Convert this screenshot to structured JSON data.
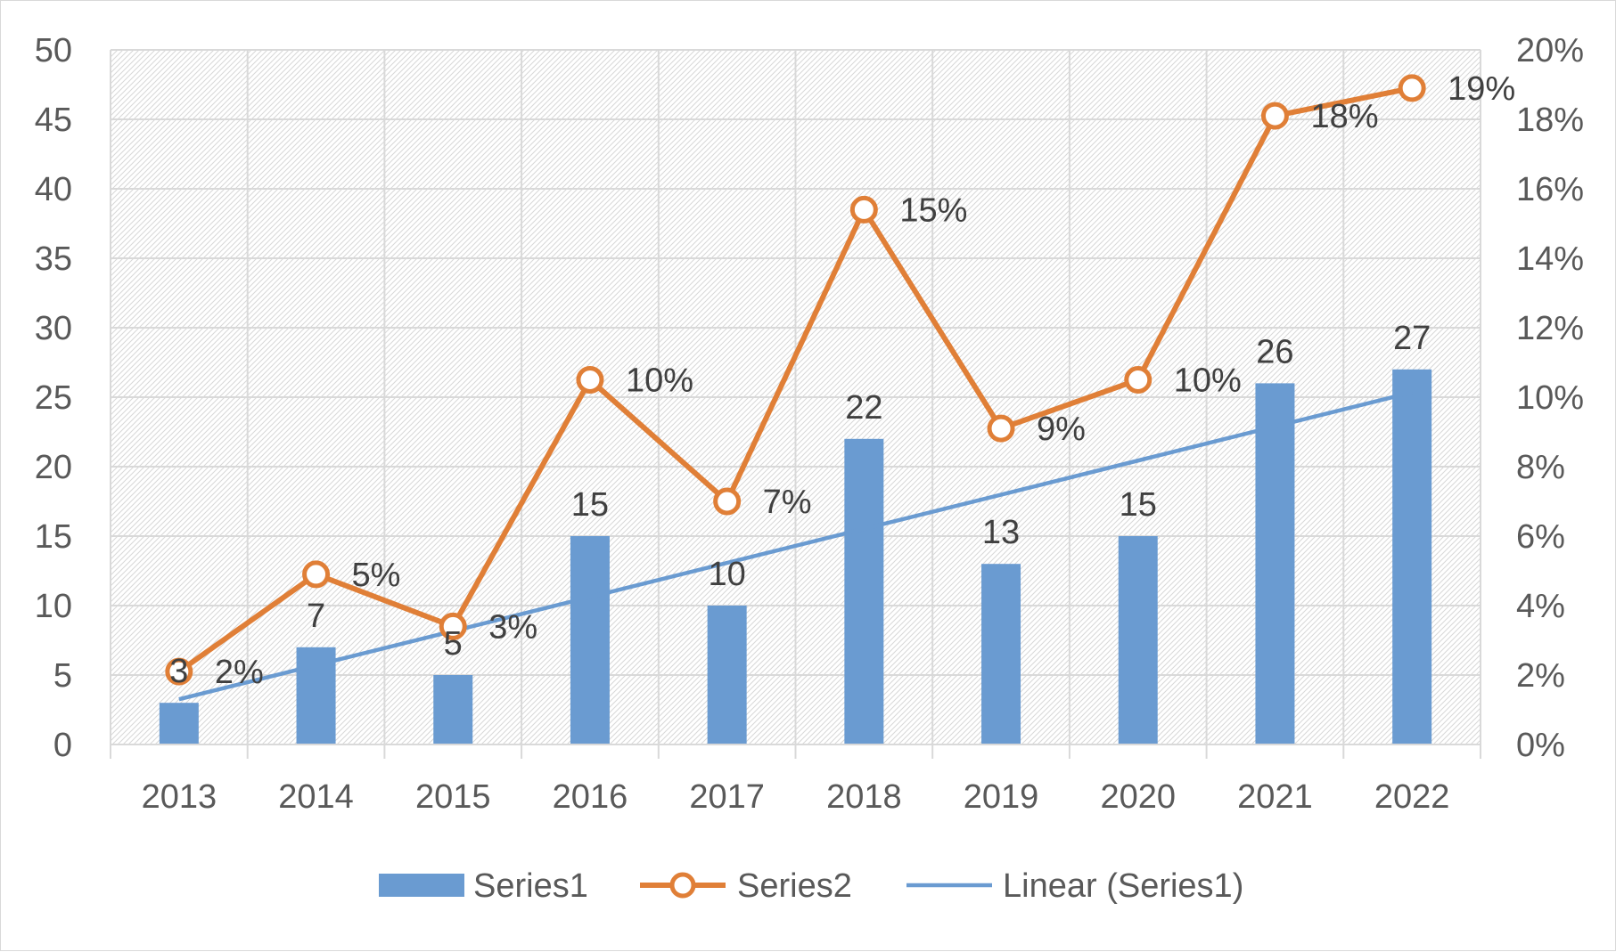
{
  "chart_data": {
    "type": "bar",
    "categories": [
      "2013",
      "2014",
      "2015",
      "2016",
      "2017",
      "2018",
      "2019",
      "2020",
      "2021",
      "2022"
    ],
    "series": [
      {
        "name": "Series1",
        "type": "bar",
        "axis": "left",
        "values": [
          3,
          7,
          5,
          15,
          10,
          22,
          13,
          15,
          26,
          27
        ],
        "color": "#6a9bd1"
      },
      {
        "name": "Series2",
        "type": "line",
        "axis": "right",
        "marker": "hollow-circle",
        "values": [
          0.02,
          0.05,
          0.03,
          0.1,
          0.07,
          0.15,
          0.09,
          0.1,
          0.18,
          0.19
        ],
        "plot_values": [
          0.021,
          0.049,
          0.034,
          0.105,
          0.07,
          0.154,
          0.091,
          0.105,
          0.181,
          0.189
        ],
        "labels": [
          "2%",
          "5%",
          "3%",
          "10%",
          "7%",
          "15%",
          "9%",
          "10%",
          "18%",
          "19%"
        ],
        "color": "#e07f37"
      },
      {
        "name": "Linear (Series1)",
        "type": "trendline",
        "axis": "left",
        "color": "#6a9bd1"
      }
    ],
    "left_axis": {
      "min": 0,
      "max": 50,
      "step": 5,
      "tick_labels": [
        "0",
        "5",
        "10",
        "15",
        "20",
        "25",
        "30",
        "35",
        "40",
        "45",
        "50"
      ]
    },
    "right_axis": {
      "min": 0,
      "max": 0.2,
      "step": 0.02,
      "tick_labels": [
        "0%",
        "2%",
        "4%",
        "6%",
        "8%",
        "10%",
        "12%",
        "14%",
        "16%",
        "18%",
        "20%"
      ]
    },
    "grid": true,
    "legend_position": "bottom",
    "title": "",
    "xlabel": "",
    "ylabel": ""
  }
}
